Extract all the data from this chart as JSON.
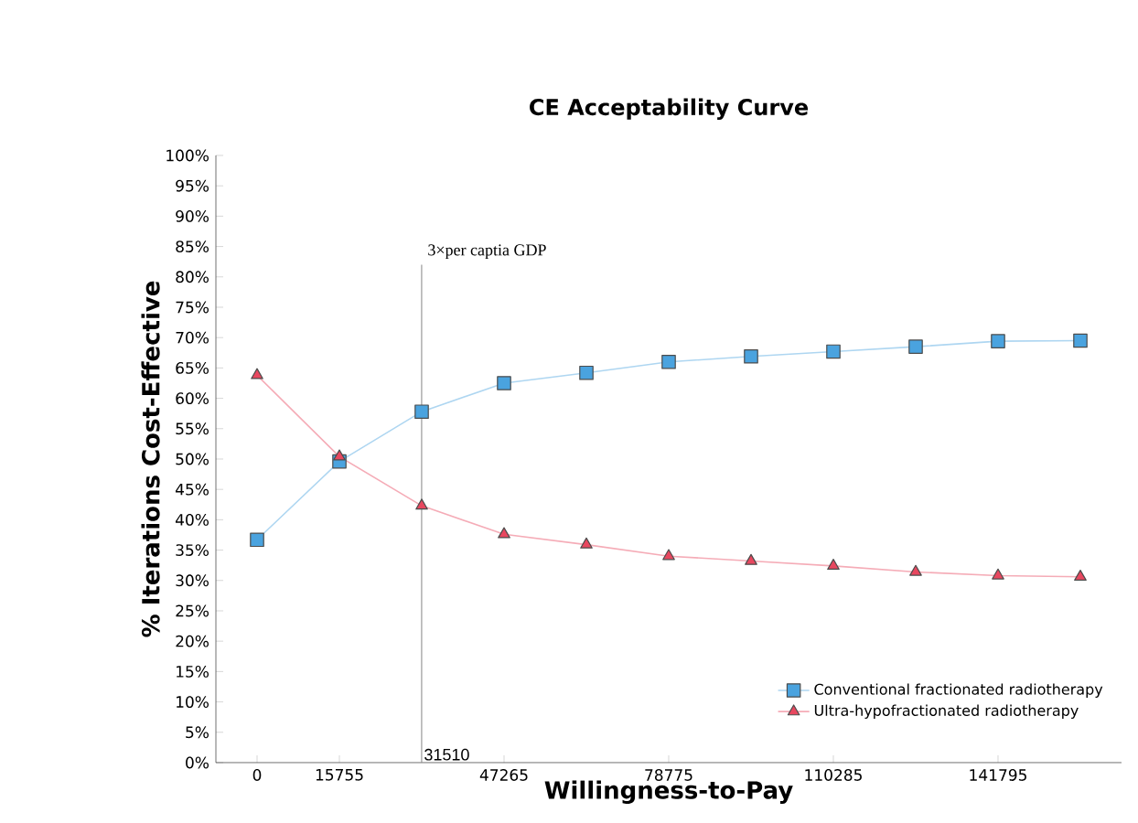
{
  "chart_data": {
    "type": "line",
    "title": "CE Acceptability Curve",
    "xlabel": "Willingness-to-Pay",
    "ylabel": "% Iterations Cost-Effective",
    "x": [
      0,
      15755,
      31510,
      47265,
      63020,
      78775,
      94530,
      110285,
      126040,
      141795,
      157550
    ],
    "series": [
      {
        "name": "Conventional fractionated radiotherapy",
        "color": "#4aa3df",
        "marker": "square",
        "values": [
          36.7,
          49.6,
          57.8,
          62.5,
          64.2,
          66.0,
          66.9,
          67.7,
          68.5,
          69.4,
          69.5
        ]
      },
      {
        "name": "Ultra-hypofractionated radiotherapy",
        "color": "#e8475f",
        "marker": "triangle",
        "values": [
          63.8,
          50.4,
          42.3,
          37.6,
          35.9,
          34.0,
          33.2,
          32.4,
          31.4,
          30.8,
          30.6
        ]
      }
    ],
    "xlim": [
      -7877.5,
      165427.5
    ],
    "xticks": [
      0,
      15755,
      47265,
      78775,
      110285,
      141795
    ],
    "ylim": [
      0,
      100
    ],
    "yticks": [
      {
        "value": 0,
        "label": "0%"
      },
      {
        "value": 5,
        "label": "5%"
      },
      {
        "value": 10,
        "label": "10%"
      },
      {
        "value": 15,
        "label": "15%"
      },
      {
        "value": 20,
        "label": "20%"
      },
      {
        "value": 25,
        "label": "25%"
      },
      {
        "value": 30,
        "label": "30%"
      },
      {
        "value": 35,
        "label": "35%"
      },
      {
        "value": 40,
        "label": "40%"
      },
      {
        "value": 45,
        "label": "45%"
      },
      {
        "value": 50,
        "label": "50%"
      },
      {
        "value": 55,
        "label": "55%"
      },
      {
        "value": 60,
        "label": "60%"
      },
      {
        "value": 65,
        "label": "65%"
      },
      {
        "value": 70,
        "label": "70%"
      },
      {
        "value": 75,
        "label": "75%"
      },
      {
        "value": 80,
        "label": "80%"
      },
      {
        "value": 85,
        "label": "85%"
      },
      {
        "value": 90,
        "label": "90%"
      },
      {
        "value": 95,
        "label": "95%"
      },
      {
        "value": 100,
        "label": "100%"
      }
    ],
    "ref_lines": [
      {
        "axis": "x",
        "value": 31510,
        "label": "3×per captia GDP",
        "color": "#888888"
      }
    ],
    "annotations": [
      {
        "text": "31510",
        "x": 31510,
        "y": 0
      }
    ],
    "grid": false,
    "legend": "bottom right",
    "line_style": "solid"
  }
}
